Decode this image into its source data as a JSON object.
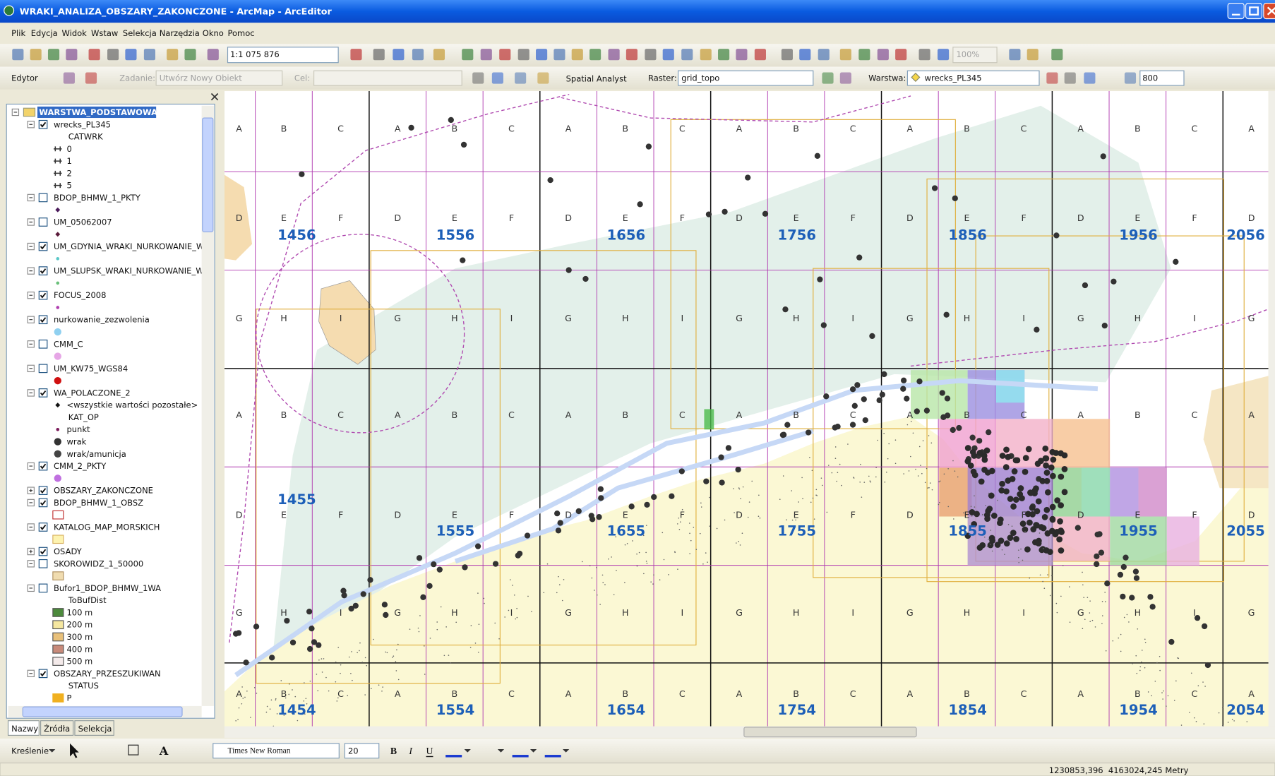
{
  "window": {
    "title": "WRAKI_ANALIZA_OBSZARY_ZAKONCZONE - ArcMap - ArcEditor"
  },
  "menu": [
    "Plik",
    "Edycja",
    "Widok",
    "Wstaw",
    "Selekcja",
    "Narzędzia",
    "Okno",
    "Pomoc"
  ],
  "toolbar": {
    "scale": "1:1 075 876",
    "zoom": "100%"
  },
  "editor_toolbar": {
    "editor": "Edytor",
    "task_label": "Zadanie:",
    "task": "Utwórz Nowy Obiekt",
    "target_label": "Cel:",
    "spatial_analyst": "Spatial Analyst",
    "raster_label": "Raster:",
    "raster": "grid_topo",
    "layer_label": "Warstwa:",
    "layer": "wrecks_PL345",
    "value": "800"
  },
  "toc": {
    "rows": [
      {
        "kind": "group",
        "text": "WARSTWA_PODSTAWOWA"
      },
      {
        "kind": "layer",
        "text": "wrecks_PL345",
        "checked": true
      },
      {
        "kind": "heading",
        "text": "CATWRK"
      },
      {
        "kind": "class",
        "text": "0",
        "swatch": {
          "shape": "wreck",
          "color": "#333333"
        }
      },
      {
        "kind": "class",
        "text": "1",
        "swatch": {
          "shape": "wreck",
          "color": "#333333"
        }
      },
      {
        "kind": "class",
        "text": "2",
        "swatch": {
          "shape": "wreck",
          "color": "#333333"
        }
      },
      {
        "kind": "class",
        "text": "5",
        "swatch": {
          "shape": "wreck",
          "color": "#333333"
        }
      },
      {
        "kind": "layer",
        "text": "BDOP_BHMW_1_PKTY",
        "checked": false
      },
      {
        "kind": "symbol",
        "swatch": {
          "shape": "diamond",
          "color": "#4a1a5a"
        }
      },
      {
        "kind": "layer",
        "text": "UM_05062007",
        "checked": false
      },
      {
        "kind": "symbol",
        "swatch": {
          "shape": "diamond",
          "color": "#5a1a3a"
        }
      },
      {
        "kind": "layer",
        "text": "UM_GDYNIA_WRAKI_NURKOWANIE_W",
        "checked": true
      },
      {
        "kind": "symbol",
        "swatch": {
          "shape": "dot",
          "color": "#5bc8c8"
        }
      },
      {
        "kind": "layer",
        "text": "UM_SLUPSK_WRAKI_NURKOWANIE_W",
        "checked": true
      },
      {
        "kind": "symbol",
        "swatch": {
          "shape": "dot",
          "color": "#6ac07a"
        }
      },
      {
        "kind": "layer",
        "text": "FOCUS_2008",
        "checked": true
      },
      {
        "kind": "symbol",
        "swatch": {
          "shape": "dot",
          "color": "#b040b0"
        }
      },
      {
        "kind": "layer",
        "text": "nurkowanie_zezwolenia",
        "checked": true
      },
      {
        "kind": "symbol",
        "swatch": {
          "shape": "bigdot",
          "color": "#8fd0f0"
        }
      },
      {
        "kind": "layer",
        "text": "CMM_C",
        "checked": false
      },
      {
        "kind": "symbol",
        "swatch": {
          "shape": "bigdot",
          "color": "#e6a6e6"
        }
      },
      {
        "kind": "layer",
        "text": "UM_KW75_WGS84",
        "checked": false
      },
      {
        "kind": "symbol",
        "swatch": {
          "shape": "bigdot",
          "color": "#d01010"
        }
      },
      {
        "kind": "layer",
        "text": "WA_POLACZONE_2",
        "checked": true
      },
      {
        "kind": "class",
        "text": "<wszystkie wartości pozostałe>",
        "swatch": {
          "shape": "diamond",
          "color": "#111111"
        }
      },
      {
        "kind": "heading",
        "text": "KAT_OP"
      },
      {
        "kind": "class",
        "text": "punkt",
        "swatch": {
          "shape": "dot",
          "color": "#7a1a5a"
        }
      },
      {
        "kind": "class",
        "text": "wrak",
        "swatch": {
          "shape": "bigdot",
          "color": "#333333"
        }
      },
      {
        "kind": "class",
        "text": "wrak/amunicja",
        "swatch": {
          "shape": "bigdot",
          "color": "#444444"
        }
      },
      {
        "kind": "layer",
        "text": "CMM_2_PKTY",
        "checked": true
      },
      {
        "kind": "symbol",
        "swatch": {
          "shape": "bigdot",
          "color": "#c070e0"
        }
      },
      {
        "kind": "layer",
        "text": "OBSZARY_ZAKONCZONE",
        "checked": true,
        "collapsed": true
      },
      {
        "kind": "layer",
        "text": "BDOP_BHMW_1_OBSZ",
        "checked": true
      },
      {
        "kind": "symbol",
        "swatch": {
          "shape": "rect",
          "color": "#ffffff",
          "outline": "#c03030"
        }
      },
      {
        "kind": "layer",
        "text": "KATALOG_MAP_MORSKICH",
        "checked": true
      },
      {
        "kind": "symbol",
        "swatch": {
          "shape": "rect",
          "color": "#fdf3b0",
          "outline": "#d8b060"
        }
      },
      {
        "kind": "layer",
        "text": "OSADY",
        "checked": true,
        "collapsed": true
      },
      {
        "kind": "layer",
        "text": "SKOROWIDZ_1_50000",
        "checked": false
      },
      {
        "kind": "symbol",
        "swatch": {
          "shape": "rect",
          "color": "#f0dcb0",
          "outline": "#b09060"
        }
      },
      {
        "kind": "layer",
        "text": "Bufor1_BDOP_BHMW_1WA",
        "checked": false
      },
      {
        "kind": "heading",
        "text": "ToBufDist"
      },
      {
        "kind": "class",
        "text": "100 m",
        "swatch": {
          "shape": "rect",
          "color": "#4c8a3c",
          "outline": "#555555"
        }
      },
      {
        "kind": "class",
        "text": "200 m",
        "swatch": {
          "shape": "rect",
          "color": "#f5e7a0",
          "outline": "#555555"
        }
      },
      {
        "kind": "class",
        "text": "300 m",
        "swatch": {
          "shape": "rect",
          "color": "#e8c07a",
          "outline": "#555555"
        }
      },
      {
        "kind": "class",
        "text": "400 m",
        "swatch": {
          "shape": "rect",
          "color": "#c88a7a",
          "outline": "#555555"
        }
      },
      {
        "kind": "class",
        "text": "500 m",
        "swatch": {
          "shape": "rect",
          "color": "#f4eaea",
          "outline": "#555555"
        }
      },
      {
        "kind": "layer",
        "text": "OBSZARY_PRZESZUKIWAN",
        "checked": true
      },
      {
        "kind": "heading",
        "text": "STATUS"
      },
      {
        "kind": "class",
        "text": "P",
        "swatch": {
          "shape": "rect",
          "color": "#f0b020",
          "outline": "#f0b020"
        }
      }
    ],
    "tabs": [
      "Nazwy",
      "Źródła",
      "Selekcja"
    ]
  },
  "map": {
    "sheet_rows": [
      [
        1456,
        1556,
        1656,
        1756,
        1856,
        1956,
        2056
      ],
      [
        1455,
        1555,
        1655,
        1755,
        1855,
        1955,
        2055
      ],
      [
        1454,
        1554,
        1654,
        1754,
        1854,
        1954,
        2054
      ]
    ],
    "letter_rows": [
      [
        "A",
        "B",
        "C",
        "A",
        "B",
        "C",
        "A",
        "B",
        "C",
        "A",
        "B",
        "C",
        "A",
        "B",
        "C",
        "A",
        "B",
        "C",
        "A"
      ],
      [
        "D",
        "E",
        "F",
        "D",
        "E",
        "F",
        "D",
        "E",
        "F",
        "D",
        "E",
        "F",
        "D",
        "E",
        "F",
        "D",
        "E",
        "F",
        "D"
      ],
      [
        "G",
        "H",
        "I",
        "G",
        "H",
        "I",
        "G",
        "H",
        "I",
        "G",
        "H",
        "I",
        "G",
        "H",
        "I",
        "G",
        "H",
        "I",
        "G"
      ],
      [
        "A",
        "B",
        "C",
        "A",
        "B",
        "C",
        "A",
        "B",
        "C",
        "A",
        "B",
        "C",
        "A",
        "B",
        "C",
        "A",
        "B",
        "C",
        "A"
      ],
      [
        "D",
        "E",
        "F",
        "D",
        "E",
        "F",
        "D",
        "E",
        "F",
        "D",
        "E",
        "F",
        "D",
        "E",
        "F",
        "D",
        "E",
        "F",
        "D"
      ],
      [
        "G",
        "H",
        "I",
        "G",
        "H",
        "I",
        "G",
        "H",
        "I",
        "G",
        "H",
        "I",
        "G",
        "H",
        "I",
        "G",
        "H",
        "I",
        "G"
      ],
      [
        "A",
        "B",
        "C",
        "A",
        "B",
        "C",
        "A",
        "B",
        "C",
        "A",
        "B",
        "C",
        "A",
        "B",
        "C",
        "A",
        "B",
        "C",
        "A"
      ]
    ]
  },
  "draw_toolbar": {
    "drawing": "Kreślenie",
    "font": "Times New Roman",
    "size": "20",
    "bold": "B",
    "italic": "I",
    "underline": "U",
    "text_tool": "A"
  },
  "status": {
    "coordinates": "1230853,396  4163024,245 Metry"
  }
}
